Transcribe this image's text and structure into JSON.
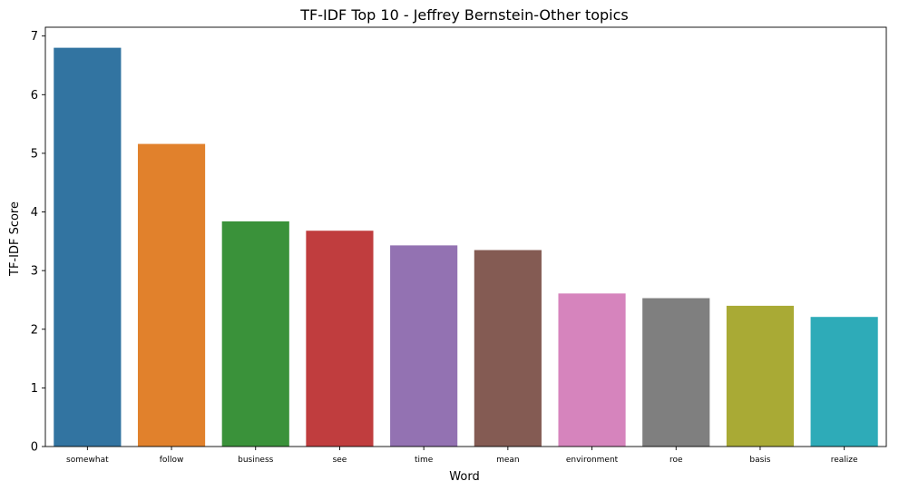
{
  "chart_data": {
    "type": "bar",
    "title": "TF-IDF Top 10 - Jeffrey Bernstein-Other topics",
    "xlabel": "Word",
    "ylabel": "TF-IDF Score",
    "categories": [
      "somewhat",
      "follow",
      "business",
      "see",
      "time",
      "mean",
      "environment",
      "roe",
      "basis",
      "realize"
    ],
    "values": [
      6.8,
      5.16,
      3.84,
      3.68,
      3.43,
      3.35,
      2.61,
      2.53,
      2.4,
      2.21
    ],
    "colors": [
      "#3274a1",
      "#e1812c",
      "#3a923a",
      "#c03d3e",
      "#9372b2",
      "#845b53",
      "#d684bd",
      "#7f7f7f",
      "#a9aa35",
      "#2eabb8"
    ],
    "ylim": [
      0,
      7.15
    ],
    "yticks": [
      0,
      1,
      2,
      3,
      4,
      5,
      6,
      7
    ],
    "grid": false,
    "legend": "none"
  }
}
